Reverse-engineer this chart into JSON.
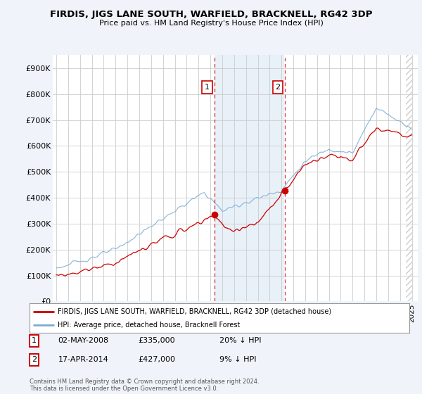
{
  "title": "FIRDIS, JIGS LANE SOUTH, WARFIELD, BRACKNELL, RG42 3DP",
  "subtitle": "Price paid vs. HM Land Registry's House Price Index (HPI)",
  "background_color": "#f0f4fa",
  "plot_bg_color": "#ffffff",
  "hpi_color": "#7aadd4",
  "price_color": "#cc0000",
  "ylim": [
    0,
    950000
  ],
  "yticks": [
    0,
    100000,
    200000,
    300000,
    400000,
    500000,
    600000,
    700000,
    800000,
    900000
  ],
  "ytick_labels": [
    "£0",
    "£100K",
    "£200K",
    "£300K",
    "£400K",
    "£500K",
    "£600K",
    "£700K",
    "£800K",
    "£900K"
  ],
  "sale1_date": "02-MAY-2008",
  "sale1_price": 335000,
  "sale1_pct": "20% ↓ HPI",
  "sale1_x": 2008.33,
  "sale2_date": "17-APR-2014",
  "sale2_price": 427000,
  "sale2_pct": "9% ↓ HPI",
  "sale2_x": 2014.29,
  "legend_line1": "FIRDIS, JIGS LANE SOUTH, WARFIELD, BRACKNELL, RG42 3DP (detached house)",
  "legend_line2": "HPI: Average price, detached house, Bracknell Forest",
  "footnote": "Contains HM Land Registry data © Crown copyright and database right 2024.\nThis data is licensed under the Open Government Licence v3.0.",
  "shade_color": "#dce8f5",
  "hatch_color": "#cccccc"
}
